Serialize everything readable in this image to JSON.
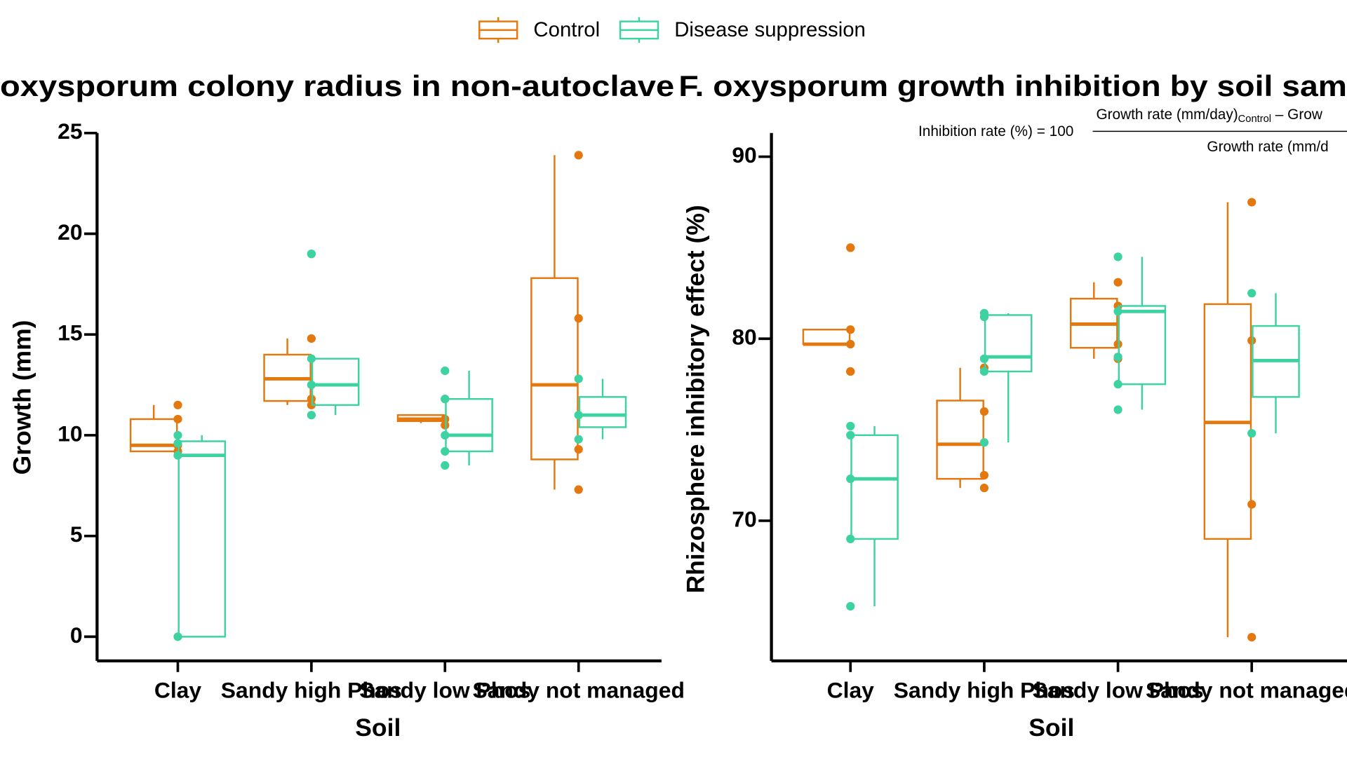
{
  "chart_data": [
    {
      "type": "box",
      "title": "oxysporum colony radius in non-autoclave",
      "x_label": "Soil",
      "y_label": "Growth (mm)",
      "categories": [
        "Clay",
        "Sandy high Phos",
        "Sandy low Phos",
        "Sandy not managed"
      ],
      "ylim": [
        -1.2,
        25
      ],
      "yticks": [
        0,
        5,
        10,
        15,
        20,
        25
      ],
      "series": [
        {
          "name": "Control",
          "color": "#e2780e",
          "boxes": [
            {
              "whislo": 9.2,
              "q1": 9.2,
              "med": 9.5,
              "q3": 10.8,
              "whishi": 11.5,
              "points": [
                11.5,
                10.8,
                9.5,
                9.2
              ]
            },
            {
              "whislo": 11.5,
              "q1": 11.7,
              "med": 12.8,
              "q3": 14.0,
              "whishi": 14.8,
              "points": [
                14.8,
                11.8,
                11.5
              ]
            },
            {
              "whislo": 10.6,
              "q1": 10.7,
              "med": 10.8,
              "q3": 11.0,
              "whishi": 11.0,
              "points": [
                11.8,
                10.8,
                10.5
              ]
            },
            {
              "whislo": 7.3,
              "q1": 8.8,
              "med": 12.5,
              "q3": 17.8,
              "whishi": 23.9,
              "points": [
                23.9,
                15.8,
                9.3,
                7.3
              ]
            }
          ]
        },
        {
          "name": "Disease suppression",
          "color": "#3dd2a1",
          "boxes": [
            {
              "whislo": 0,
              "q1": 0,
              "med": 9.0,
              "q3": 9.7,
              "whishi": 10.0,
              "points": [
                10.0,
                9.6,
                9.0,
                0
              ]
            },
            {
              "whislo": 11.0,
              "q1": 11.5,
              "med": 12.5,
              "q3": 13.8,
              "whishi": 13.8,
              "points": [
                19.0,
                19.0,
                13.8,
                12.5,
                11.0
              ]
            },
            {
              "whislo": 8.5,
              "q1": 9.2,
              "med": 10.0,
              "q3": 11.8,
              "whishi": 13.2,
              "points": [
                13.2,
                11.8,
                10.0,
                9.2,
                8.5
              ]
            },
            {
              "whislo": 9.8,
              "q1": 10.4,
              "med": 11.0,
              "q3": 11.9,
              "whishi": 12.8,
              "points": [
                12.8,
                11.0,
                9.8
              ]
            }
          ]
        }
      ]
    },
    {
      "type": "box",
      "title": "F. oxysporum growth inhibition by soil sam",
      "x_label": "Soil",
      "y_label": "Rhizosphere inhibitory effect (%)",
      "annotation": {
        "lhs": "Inhibition rate (%) = 100",
        "numerator": "Growth rate (mm/day)",
        "subscript": "Control",
        "numerator_rest": " – Grow",
        "denominator": "Growth rate (mm/d"
      },
      "categories": [
        "Clay",
        "Sandy high Phos",
        "Sandy low Phos",
        "Sandy not managed"
      ],
      "ylim": [
        62.3,
        91.3
      ],
      "yticks": [
        70,
        80,
        90
      ],
      "series": [
        {
          "color": "#e2780e",
          "boxes": [
            {
              "whislo": 79.7,
              "q1": 79.7,
              "med": 79.7,
              "q3": 80.5,
              "whishi": 80.5,
              "points": [
                85.0,
                85.0,
                80.5,
                79.7,
                78.2,
                78.2
              ]
            },
            {
              "whislo": 71.8,
              "q1": 72.3,
              "med": 74.2,
              "q3": 76.6,
              "whishi": 78.4,
              "points": [
                78.4,
                76.0,
                72.5,
                71.8
              ]
            },
            {
              "whislo": 78.9,
              "q1": 79.5,
              "med": 80.8,
              "q3": 82.2,
              "whishi": 83.1,
              "points": [
                83.1,
                81.8,
                79.7,
                78.9
              ]
            },
            {
              "whislo": 63.6,
              "q1": 69.0,
              "med": 75.4,
              "q3": 81.9,
              "whishi": 87.5,
              "points": [
                87.5,
                79.9,
                70.9,
                63.6
              ]
            }
          ]
        },
        {
          "color": "#3dd2a1",
          "boxes": [
            {
              "whislo": 65.3,
              "q1": 69.0,
              "med": 72.3,
              "q3": 74.7,
              "whishi": 75.2,
              "points": [
                75.2,
                74.7,
                72.3,
                69.0,
                65.3
              ]
            },
            {
              "whislo": 74.3,
              "q1": 78.2,
              "med": 79.0,
              "q3": 81.3,
              "whishi": 81.4,
              "points": [
                81.4,
                81.2,
                78.9,
                78.2,
                74.3
              ]
            },
            {
              "whislo": 76.1,
              "q1": 77.5,
              "med": 81.5,
              "q3": 81.8,
              "whishi": 84.5,
              "points": [
                84.5,
                81.5,
                79.0,
                77.5,
                76.1
              ]
            },
            {
              "whislo": 74.8,
              "q1": 76.8,
              "med": 78.8,
              "q3": 80.7,
              "whishi": 82.5,
              "points": [
                82.5,
                74.8
              ]
            }
          ]
        }
      ]
    }
  ]
}
